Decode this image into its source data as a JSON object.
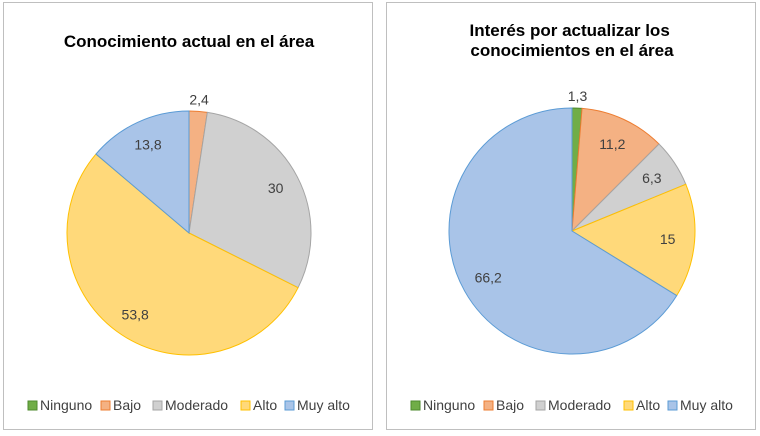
{
  "chart_data": [
    {
      "type": "pie",
      "title": "Conocimiento actual en el área",
      "categories": [
        "Ninguno",
        "Bajo",
        "Moderado",
        "Alto",
        "Muy alto"
      ],
      "values": [
        0,
        2.4,
        30,
        53.8,
        13.8
      ],
      "value_labels": [
        "",
        "2,4",
        "30",
        "53,8",
        "13,8"
      ],
      "legend_position": "bottom"
    },
    {
      "type": "pie",
      "title": "Interés por actualizar los conocimientos en el área",
      "categories": [
        "Ninguno",
        "Bajo",
        "Moderado",
        "Alto",
        "Muy alto"
      ],
      "values": [
        1.3,
        11.2,
        6.3,
        15,
        66.2
      ],
      "value_labels": [
        "1,3",
        "11,2",
        "6,3",
        "15",
        "66,2"
      ],
      "legend_position": "bottom"
    }
  ],
  "colors": {
    "Ninguno": {
      "fill": "#70ad47",
      "stroke": "#4e8a2e"
    },
    "Bajo": {
      "fill": "#f4b183",
      "stroke": "#ed7d31"
    },
    "Moderado": {
      "fill": "#d0d0d0",
      "stroke": "#a5a5a5"
    },
    "Alto": {
      "fill": "#ffd97a",
      "stroke": "#ffc000"
    },
    "Muy alto": {
      "fill": "#a9c4e8",
      "stroke": "#5b9bd5"
    }
  }
}
